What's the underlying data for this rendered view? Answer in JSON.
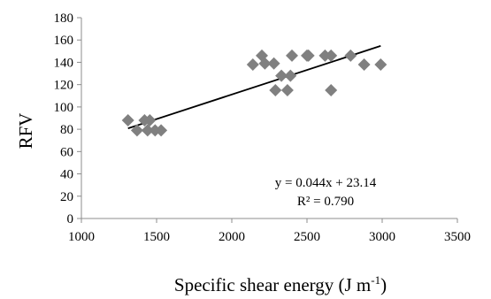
{
  "chart_data": {
    "type": "scatter",
    "title": "",
    "xlabel": "Specific shear energy (J m",
    "xlabel_sup": "-1",
    "xlabel_close": ")",
    "ylabel": "RFV",
    "xlim": [
      1000,
      3500
    ],
    "ylim": [
      0,
      180
    ],
    "xticks": [
      1000,
      1500,
      2000,
      2500,
      3000,
      3500
    ],
    "yticks": [
      0,
      20,
      40,
      60,
      80,
      100,
      120,
      140,
      160,
      180
    ],
    "grid": false,
    "marker_color": "#808080",
    "trendline_color": "#000000",
    "points": [
      {
        "x": 1310,
        "y": 88
      },
      {
        "x": 1370,
        "y": 79
      },
      {
        "x": 1420,
        "y": 88
      },
      {
        "x": 1440,
        "y": 79
      },
      {
        "x": 1455,
        "y": 88
      },
      {
        "x": 1490,
        "y": 79
      },
      {
        "x": 1530,
        "y": 79
      },
      {
        "x": 2140,
        "y": 138
      },
      {
        "x": 2200,
        "y": 146
      },
      {
        "x": 2220,
        "y": 139
      },
      {
        "x": 2280,
        "y": 139
      },
      {
        "x": 2290,
        "y": 115
      },
      {
        "x": 2330,
        "y": 128
      },
      {
        "x": 2370,
        "y": 115
      },
      {
        "x": 2390,
        "y": 128
      },
      {
        "x": 2400,
        "y": 146
      },
      {
        "x": 2500,
        "y": 146
      },
      {
        "x": 2510,
        "y": 146
      },
      {
        "x": 2620,
        "y": 146
      },
      {
        "x": 2660,
        "y": 146
      },
      {
        "x": 2660,
        "y": 115
      },
      {
        "x": 2790,
        "y": 146
      },
      {
        "x": 2880,
        "y": 138
      },
      {
        "x": 2990,
        "y": 138
      }
    ],
    "trendline": {
      "slope": 0.044,
      "intercept": 23.14,
      "x_range": [
        1310,
        2990
      ]
    },
    "equation_label": "y = 0.044x + 23.14",
    "r2_label": "R² = 0.790"
  }
}
